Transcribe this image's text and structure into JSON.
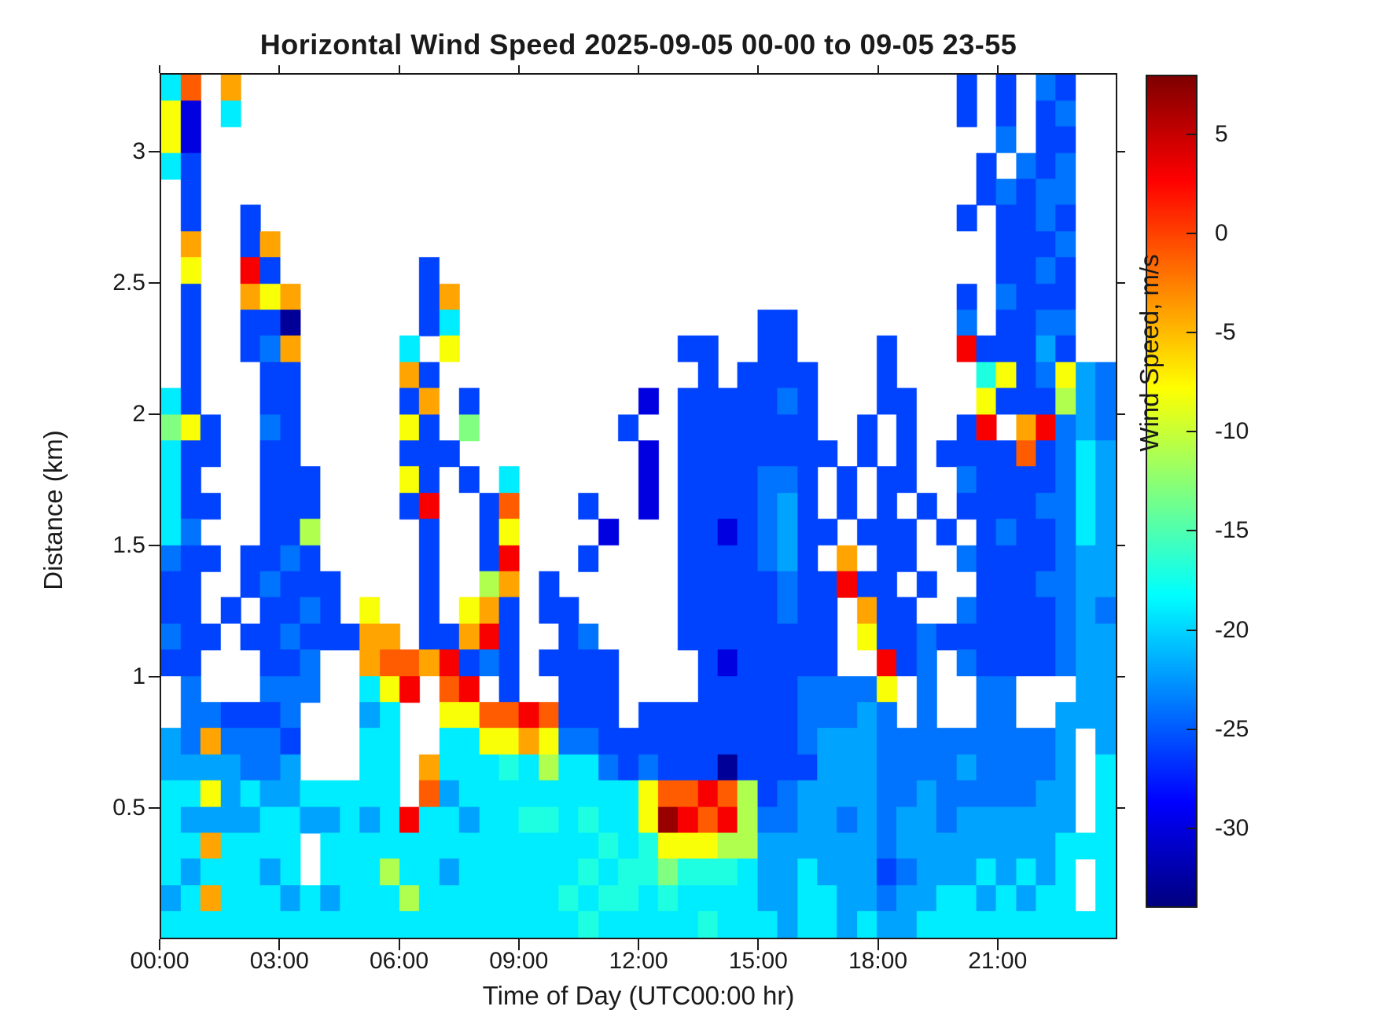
{
  "title": "Horizontal Wind Speed 2025-09-05 00-00 to 09-05 23-55",
  "colors": {
    "background": "#ffffff",
    "axis": "#1a1a1a",
    "no_data": "#ffffff"
  },
  "axes": {
    "xlabel": "Time of Day (UTC00:00 hr)",
    "ylabel": "Distance (km)",
    "x_ticks": [
      {
        "hour": 0,
        "label": "00:00"
      },
      {
        "hour": 3,
        "label": "03:00"
      },
      {
        "hour": 6,
        "label": "06:00"
      },
      {
        "hour": 9,
        "label": "09:00"
      },
      {
        "hour": 12,
        "label": "12:00"
      },
      {
        "hour": 15,
        "label": "15:00"
      },
      {
        "hour": 18,
        "label": "18:00"
      },
      {
        "hour": 21,
        "label": "21:00"
      }
    ],
    "y_ticks": [
      {
        "km": 0.5,
        "label": "0.5"
      },
      {
        "km": 1.0,
        "label": "1"
      },
      {
        "km": 1.5,
        "label": "1.5"
      },
      {
        "km": 2.0,
        "label": "2"
      },
      {
        "km": 2.5,
        "label": "2.5"
      },
      {
        "km": 3.0,
        "label": "3"
      }
    ]
  },
  "colorbar": {
    "label": "Wind Speed, m/s",
    "min": -34,
    "max": 8,
    "tick_values": [
      5,
      0,
      -5,
      -10,
      -15,
      -20,
      -25,
      -30
    ],
    "colormap": "jet"
  },
  "chart_data": {
    "type": "heatmap",
    "title": "Horizontal Wind Speed 2025-09-05 00-00 to 09-05 23-55",
    "xlabel": "Time of Day (UTC00:00 hr)",
    "ylabel": "Distance (km)",
    "value_label": "Wind Speed, m/s",
    "x_range_hours": [
      0,
      24
    ],
    "y_range_km": [
      0,
      3.3
    ],
    "color_range": [
      -34,
      8
    ],
    "grid_cols": 48,
    "grid_rows": 33,
    "col_duration_hours": 0.5,
    "row_height_km": 0.1,
    "levels_m_per_s": {
      ".": null,
      "0": -33,
      "1": -30,
      "2": -26,
      "3": -24,
      "4": -22,
      "5": -19,
      "6": -17,
      "7": -13,
      "8": -11,
      "9": -8,
      "a": -4,
      "b": -1,
      "c": 3,
      "d": 7
    },
    "rows_top_to_bottom": [
      "5b.a....................................2.2.32",
      "91.5....................................2.2.23",
      "91........................................3.22",
      "52.......................................2.323",
      ".2.......................................23233",
      ".2..2...................................2.2232",
      ".a..2a....................................2223",
      ".9..c2.......2............................2232",
      ".2..a9a......2a.........................2.3222",
      ".2..220......25...............22........3.2233",
      ".2..23a.....5.9...........22..22....2...c22242",
      ".2...22.....a2.............2.2222...2....6923943",
      "52...22.....2a.2........1.2222232...22...9222843",
      "792..32.....92.7.......2..2222222..2.2..2c.ac343",
      "522..22.....222.........1.22222222.2.2.2222b2354",
      "52...222....92.2.5......1.2222332.2.22..32222354",
      "522..222....2c..2b...2..1.2222342.2.2.2.22223354",
      "53...228.....2..29....1...22123422.222.2.2322354",
      "322.2232.....2..2c...2....2222342.a.22..32222344",
      "22..23222....2..8a.2......22222322c22.2..2223344",
      "22.2.2232.9..2.9a2.22.....22222322.a22..32222343",
      "322.223222aa.22ac2..23....22222222.9223222222344",
      "22...223..abbac232.2222....2122222..c23.32222344",
      ".3...333..59c.bc.2..222....2222233339.3..33...44",
      ".332223...45..99bbcb222.2222222233343.3..33..444",
      "43a3332...55..5599a933222222222234443333333334 45",
      "4444334...55.a55565855323222022224443333433334 55",
      "559454455555.b45555555559bbcb82344443343333344 55",
      "544445544545c554556656559dcbc83344343443444444 55",
      "55a5555.5555555555555565699988444444344444444555",
      "5455545.55585545555556566766654454442344454545 55",
      "45a5554545558555555565665655554455443445545455 55",
      "555555555555555555555655555655545545445555555555"
    ]
  }
}
